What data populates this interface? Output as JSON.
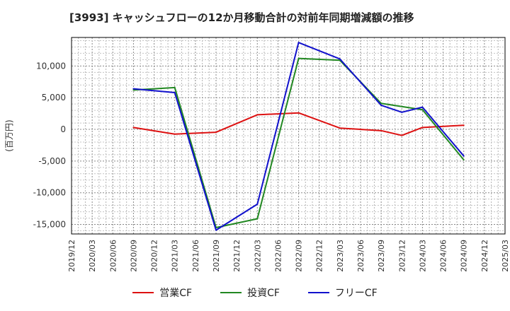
{
  "chart_data": {
    "type": "line",
    "title": "[3993]  キャッシュフローの12か月移動合計の対前年同期増減額の推移",
    "ylabel": "(百万円)",
    "xlabel": "",
    "ylim": [
      -16500,
      14500
    ],
    "yticks": [
      10000,
      5000,
      0,
      -5000,
      -10000,
      -15000
    ],
    "ytick_labels": [
      "10,000",
      "5,000",
      "0",
      "-5,000",
      "-10,000",
      "-15,000"
    ],
    "x_ticks": [
      "2019/12",
      "2020/03",
      "2020/06",
      "2020/09",
      "2020/12",
      "2021/03",
      "2021/06",
      "2021/09",
      "2021/12",
      "2022/03",
      "2022/06",
      "2022/09",
      "2022/12",
      "2023/03",
      "2023/06",
      "2023/09",
      "2023/12",
      "2024/03",
      "2024/06",
      "2024/09",
      "2024/12",
      "2025/03"
    ],
    "grid": true,
    "legend_position": "bottom",
    "series": [
      {
        "name": "営業CF",
        "color": "#dd1111",
        "x": [
          "2020/09",
          "2021/03",
          "2021/09",
          "2022/03",
          "2022/09",
          "2023/03",
          "2023/09",
          "2023/12",
          "2024/03",
          "2024/09"
        ],
        "values": [
          300,
          -750,
          -450,
          2300,
          2600,
          200,
          -200,
          -950,
          300,
          650
        ]
      },
      {
        "name": "投資CF",
        "color": "#228822",
        "x": [
          "2020/09",
          "2021/03",
          "2021/09",
          "2022/03",
          "2022/09",
          "2023/03",
          "2023/09",
          "2024/03",
          "2024/09"
        ],
        "values": [
          6200,
          6600,
          -15500,
          -14100,
          11200,
          10900,
          4100,
          3100,
          -4800
        ]
      },
      {
        "name": "フリーCF",
        "color": "#1111cc",
        "x": [
          "2020/09",
          "2021/03",
          "2021/09",
          "2022/03",
          "2022/09",
          "2023/03",
          "2023/09",
          "2023/12",
          "2024/03",
          "2024/09"
        ],
        "values": [
          6400,
          5800,
          -15900,
          -11800,
          13700,
          11100,
          3800,
          2700,
          3500,
          -4200
        ]
      }
    ]
  }
}
